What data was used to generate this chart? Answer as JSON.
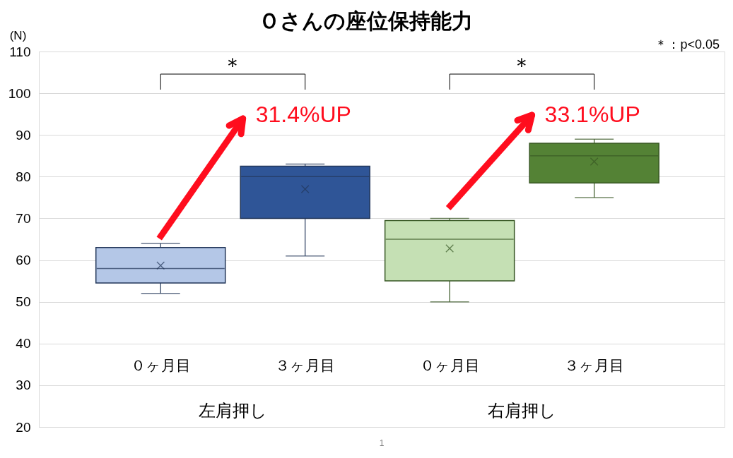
{
  "chart_data": {
    "type": "box",
    "title": "Ｏさんの座位保持能力",
    "ylabel": "(N)",
    "categories": [
      "０ヶ月目",
      "３ヶ月目",
      "０ヶ月目",
      "３ヶ月目"
    ],
    "colors": [
      "#b4c7e7",
      "#2f5597",
      "#c5e0b4",
      "#548235"
    ],
    "boxes": [
      {
        "low": 52,
        "q1": 54.5,
        "median": 58,
        "q3": 63,
        "high": 64,
        "mean": 58.7
      },
      {
        "low": 61,
        "q1": 70,
        "median": 80,
        "q3": 82.5,
        "high": 83,
        "mean": 77
      },
      {
        "low": 50,
        "q1": 55,
        "median": 65,
        "q3": 69.5,
        "high": 70,
        "mean": 62.8
      },
      {
        "low": 75,
        "q1": 78.5,
        "median": 85,
        "q3": 88,
        "high": 89,
        "mean": 83.6
      }
    ],
    "ylim": [
      20,
      110
    ],
    "yticks": [
      20,
      30,
      40,
      50,
      60,
      70,
      80,
      90,
      100,
      110
    ],
    "grid": "y",
    "annotations": [
      "左肩押し",
      "右肩押し",
      "＊",
      "＊",
      "＊：p<0.05",
      "31.4%UP",
      "33.1%UP",
      "1"
    ]
  }
}
